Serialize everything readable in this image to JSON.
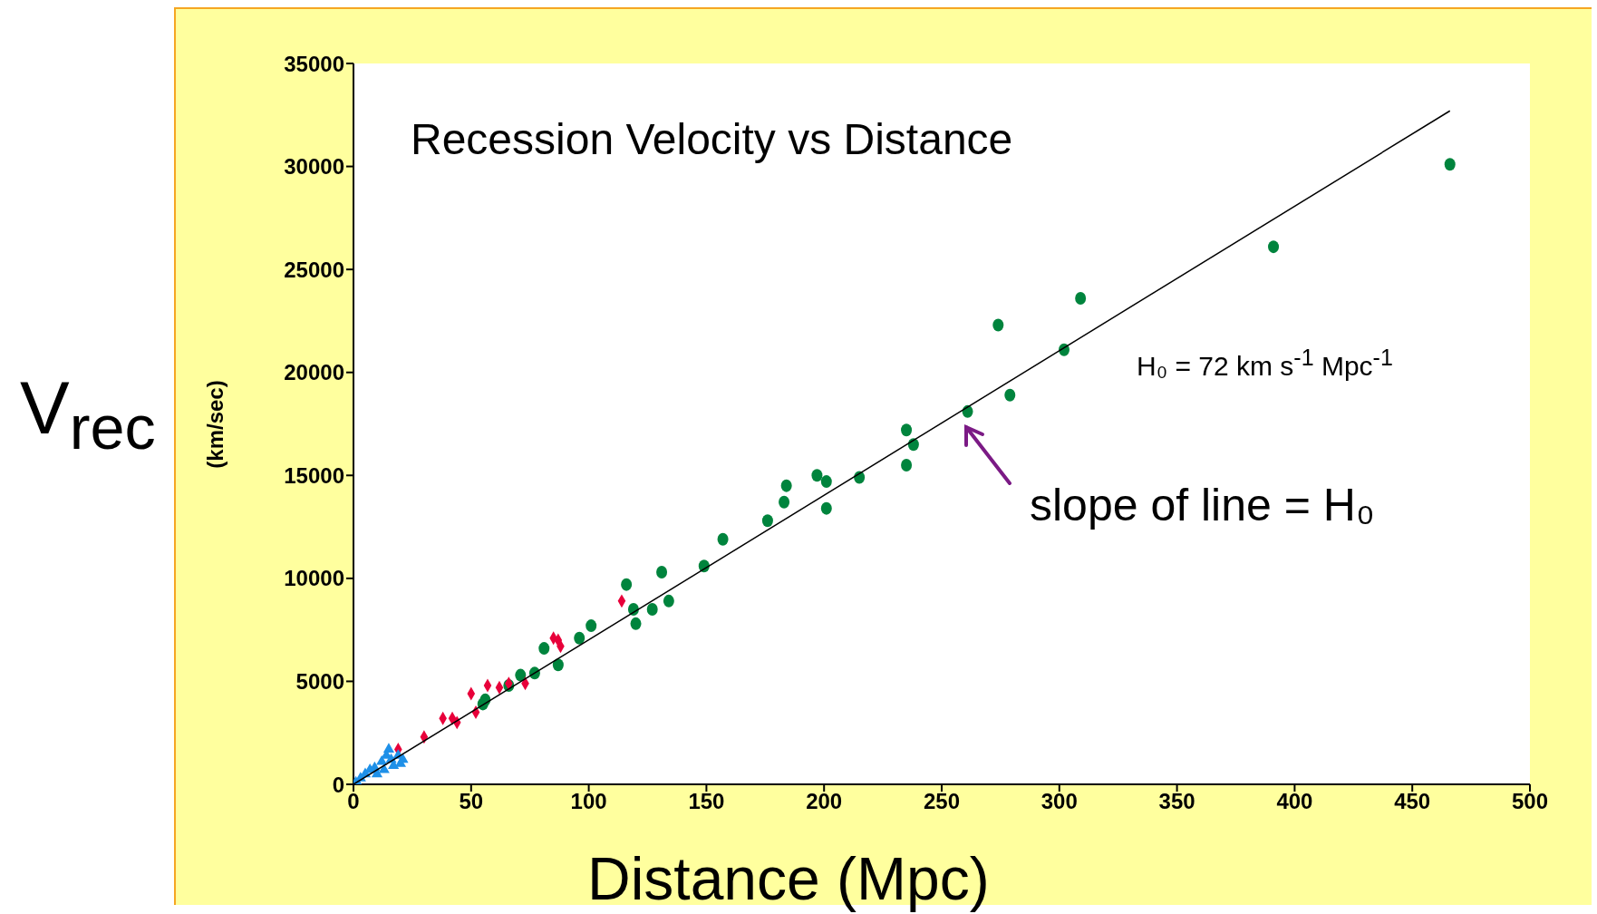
{
  "chart_data": {
    "type": "scatter",
    "title": "Recession Velocity vs Distance",
    "xlabel": "Distance (Mpc)",
    "ylabel": "(km/sec)",
    "annotations": [
      "V$_{rec}$",
      "H₀ = 72 km s$^{-1}$ Mpc$^{-1}$",
      "slope of line = H₀"
    ],
    "xlim": [
      0,
      500
    ],
    "xticks": [
      0,
      50,
      100,
      150,
      200,
      250,
      300,
      350,
      400,
      450,
      500
    ],
    "ylim": [
      0,
      35000
    ],
    "yticks": [
      0,
      5000,
      10000,
      15000,
      20000,
      25000,
      30000,
      35000
    ],
    "grid": false,
    "series": [
      {
        "marker": "circle",
        "color": "#00843d",
        "x": [
          466,
          391,
          309,
          274,
          302,
          279,
          261,
          235,
          238,
          235,
          215,
          197,
          201,
          184,
          183,
          201,
          176,
          157,
          149,
          131,
          116,
          119,
          120,
          127,
          134,
          101,
          96,
          81,
          87,
          77,
          71,
          66,
          56,
          55
        ],
        "values": [
          30100,
          26100,
          23600,
          22300,
          21100,
          18900,
          18100,
          17200,
          16500,
          15500,
          14900,
          15000,
          14700,
          14500,
          13700,
          13400,
          12800,
          11900,
          10600,
          10300,
          9700,
          8500,
          7800,
          8500,
          8900,
          7700,
          7100,
          6600,
          5800,
          5400,
          5300,
          4800,
          4100,
          3900
        ]
      },
      {
        "marker": "diamond",
        "color": "#e8003a",
        "x": [
          114,
          85,
          88,
          87,
          50,
          57,
          62,
          66,
          73,
          52,
          38,
          42,
          44,
          30,
          19
        ],
        "values": [
          8900,
          7100,
          6700,
          7000,
          4400,
          4800,
          4700,
          4900,
          4900,
          3500,
          3200,
          3200,
          3000,
          2300,
          1700
        ]
      },
      {
        "marker": "triangle",
        "color": "#1e90e8",
        "x": [
          1,
          2,
          3,
          5,
          7,
          9,
          10,
          12,
          13,
          14,
          15,
          16,
          17,
          19,
          20,
          21
        ],
        "values": [
          100,
          0,
          300,
          500,
          700,
          800,
          500,
          1100,
          700,
          1400,
          1700,
          1200,
          900,
          1400,
          1000,
          1200
        ]
      },
      {
        "type": "line",
        "marker": "none",
        "line_style": "solid",
        "color": "#000000",
        "x": [
          0,
          466
        ],
        "values": [
          0,
          32700
        ]
      }
    ]
  }
}
